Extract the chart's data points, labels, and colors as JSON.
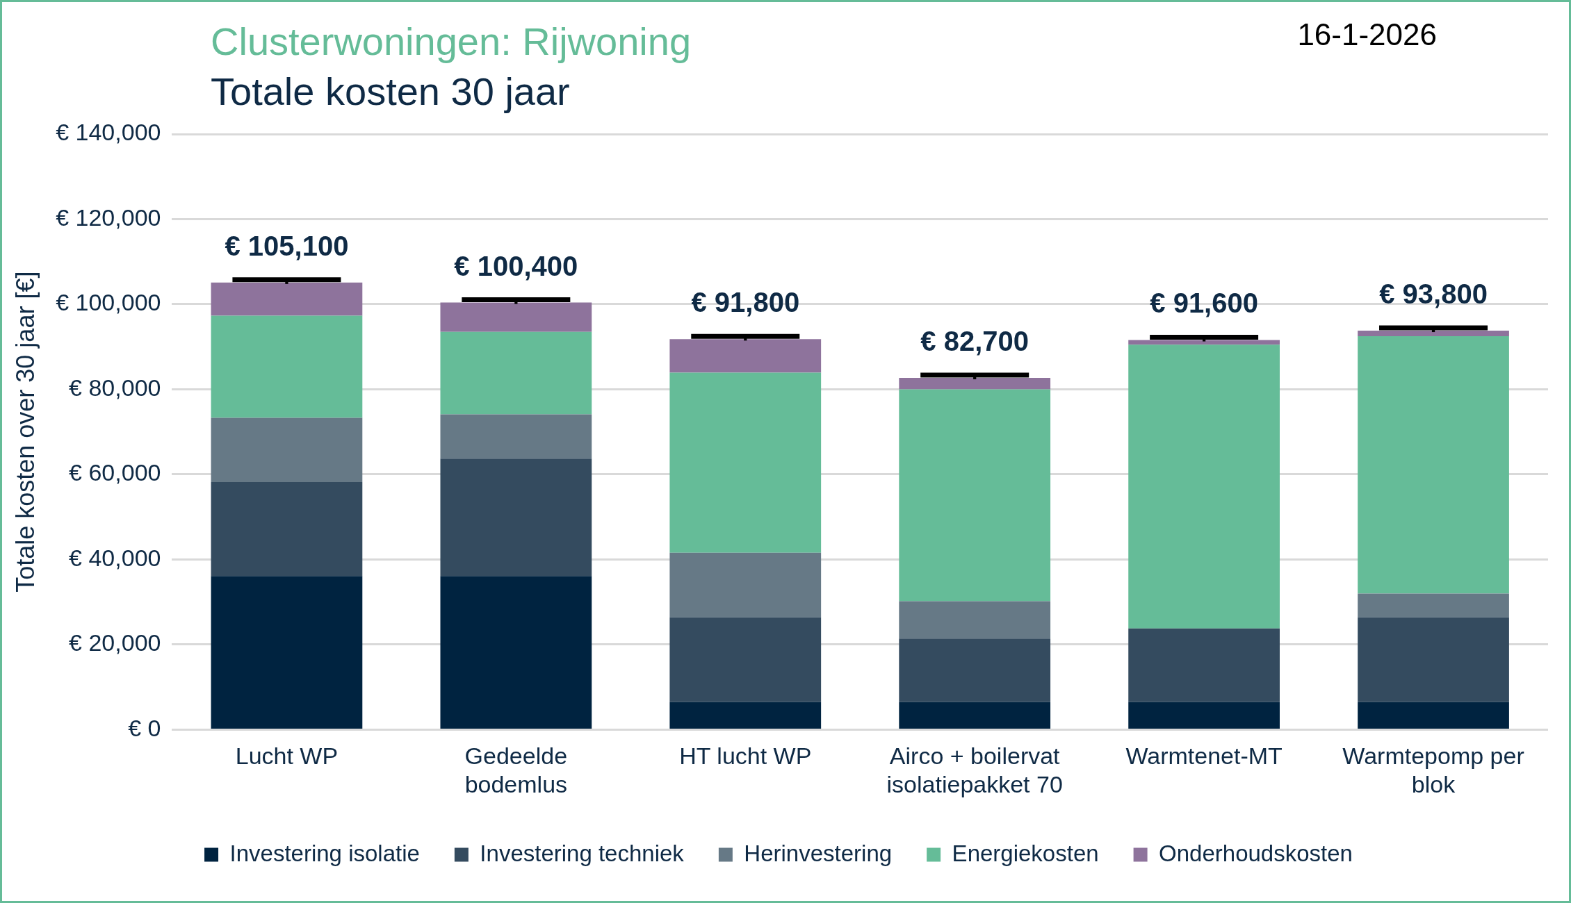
{
  "chart_data": {
    "type": "bar",
    "stacked": true,
    "title": "Clusterwoningen: Rijwoning",
    "subtitle": "Totale kosten 30 jaar",
    "annotations": [
      "16-1-2026"
    ],
    "ylabel": "Totale kosten over 30 jaar [€]",
    "categories": [
      "Lucht WP",
      "Gedeelde bodemlus",
      "HT lucht WP",
      "Airco + boilervat isolatiepakket 70",
      "Warmtenet-MT",
      "Warmtepomp per blok"
    ],
    "series": [
      {
        "name": "Investering isolatie",
        "color": "#002340",
        "values": [
          36100,
          36100,
          6500,
          6500,
          6500,
          6500
        ]
      },
      {
        "name": "Investering techniek",
        "color": "#344b5f",
        "values": [
          22100,
          27600,
          19900,
          14900,
          17300,
          19900
        ]
      },
      {
        "name": "Herinvestering",
        "color": "#667986",
        "values": [
          15100,
          10400,
          15200,
          8800,
          null,
          5600
        ]
      },
      {
        "name": "Energiekosten",
        "color": "#65bc98",
        "values": [
          24000,
          19400,
          42300,
          49800,
          66700,
          60500
        ]
      },
      {
        "name": "Onderhoudskosten",
        "color": "#8e739c",
        "values": [
          7800,
          6900,
          7900,
          2700,
          1100,
          1300
        ]
      },
      {
        "type": "scatter",
        "color": "#000000",
        "x": [
          "Lucht WP",
          "Gedeelde bodemlus",
          "HT lucht WP",
          "Airco + boilervat isolatiepakket 70",
          "Warmtenet-MT",
          "Warmtepomp per blok"
        ],
        "values": [
          105100,
          100400,
          91800,
          82700,
          91600,
          93800
        ]
      }
    ],
    "totals": [
      "€ 105,100",
      "€ 100,400",
      "€ 91,800",
      "€ 82,700",
      "€ 91,600",
      "€ 93,800"
    ],
    "ylim": [
      0,
      140000
    ],
    "yticks": [
      {
        "value": 0,
        "label": "€ 0"
      },
      {
        "value": 20000,
        "label": "€ 20,000"
      },
      {
        "value": 40000,
        "label": "€ 40,000"
      },
      {
        "value": 60000,
        "label": "€ 60,000"
      },
      {
        "value": 80000,
        "label": "€ 80,000"
      },
      {
        "value": 100000,
        "label": "€ 100,000"
      },
      {
        "value": 120000,
        "label": "€ 120,000"
      },
      {
        "value": 140000,
        "label": "€ 140,000"
      }
    ],
    "grid": "y",
    "legend": "bottom"
  }
}
